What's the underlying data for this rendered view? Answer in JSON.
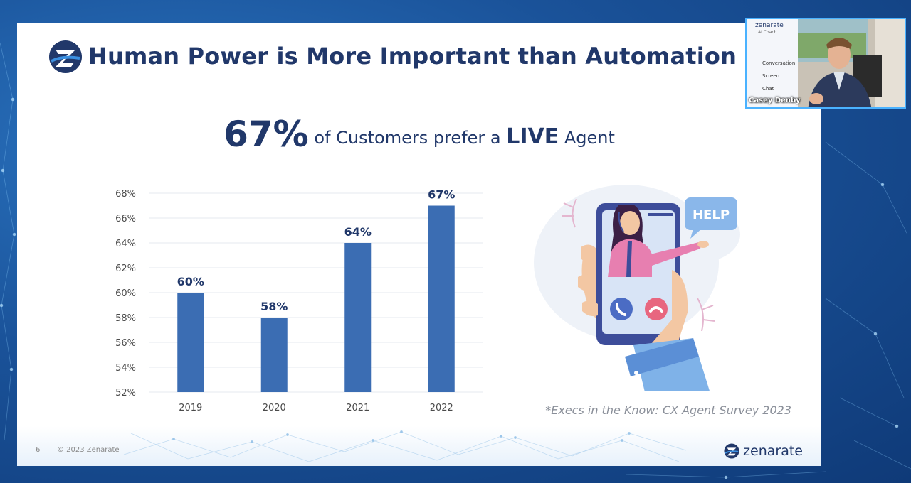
{
  "slide": {
    "title": "Human Power is More Important than Automation",
    "headline": {
      "stat": "67%",
      "text_a": " of Customers prefer a ",
      "emphasis": "LIVE",
      "text_b": " Agent"
    },
    "source": "*Execs in the Know: CX Agent Survey 2023",
    "page_number": "6",
    "copyright": "© 2023 Zenarate",
    "brand": "zenarate",
    "illustration": {
      "help_text": "HELP"
    }
  },
  "video_overlay": {
    "presenter_name": "Casey Denby",
    "slide_brand": "zenarate",
    "slide_subtitle": "AI Coach",
    "menu_items": [
      "Conversation",
      "Screen",
      "Chat"
    ]
  },
  "colors": {
    "bar": "#3b6db3",
    "title": "#21386a",
    "grid": "#e6e9ef",
    "axis_text": "#4a4a4a",
    "webcam_border": "#4ab2ff"
  },
  "chart_data": {
    "type": "bar",
    "categories": [
      "2019",
      "2020",
      "2021",
      "2022"
    ],
    "values": [
      60,
      58,
      64,
      67
    ],
    "data_labels": [
      "60%",
      "58%",
      "64%",
      "67%"
    ],
    "ylim": [
      52,
      68
    ],
    "yticks": [
      "52%",
      "54%",
      "56%",
      "58%",
      "60%",
      "62%",
      "64%",
      "66%",
      "68%"
    ],
    "grid": true,
    "title": "",
    "xlabel": "",
    "ylabel": ""
  }
}
